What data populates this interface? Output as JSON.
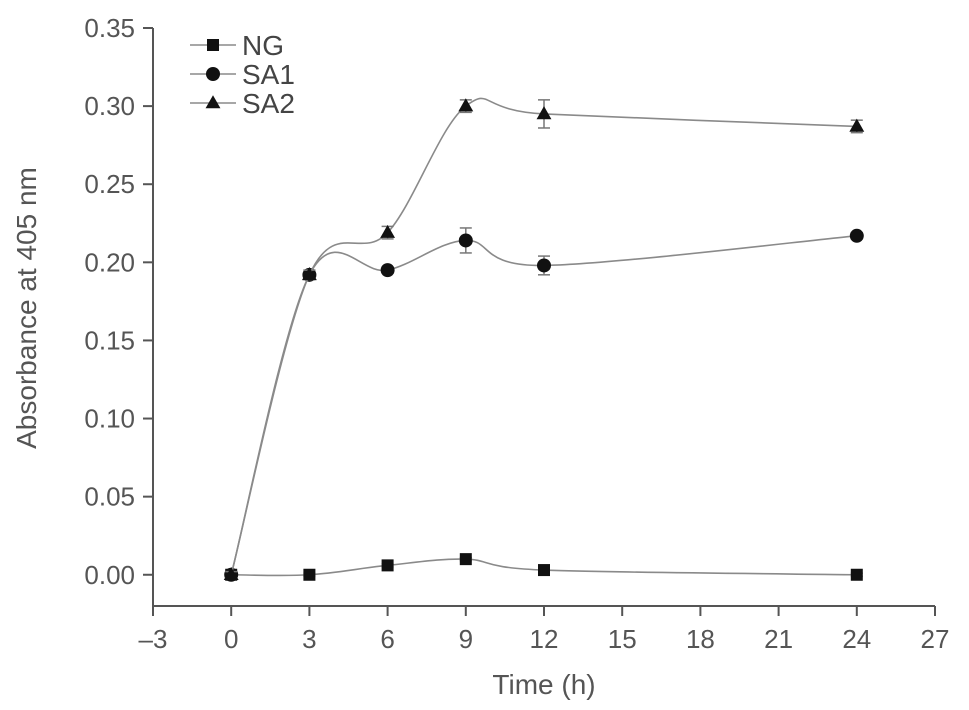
{
  "chart_data": {
    "type": "line",
    "xlabel": "Time (h)",
    "ylabel": "Absorbance at 405 nm",
    "xlim": [
      -3,
      27
    ],
    "ylim": [
      -0.02,
      0.35
    ],
    "xticks": [
      -3,
      0,
      3,
      6,
      9,
      12,
      15,
      18,
      21,
      24,
      27
    ],
    "xtick_labels": [
      "–3",
      "0",
      "3",
      "6",
      "9",
      "12",
      "15",
      "18",
      "21",
      "24",
      "27"
    ],
    "yticks": [
      0.0,
      0.05,
      0.1,
      0.15,
      0.2,
      0.25,
      0.3,
      0.35
    ],
    "ytick_labels": [
      "0.00",
      "0.05",
      "0.10",
      "0.15",
      "0.20",
      "0.25",
      "0.30",
      "0.35"
    ],
    "x": [
      0,
      3,
      6,
      9,
      12,
      24
    ],
    "legend_position": "top-left",
    "grid": false,
    "series": [
      {
        "name": "NG",
        "marker": "square",
        "values": [
          0.0,
          0.0,
          0.006,
          0.01,
          0.003,
          0.0
        ],
        "errors": [
          0.002,
          0.001,
          0.001,
          0.001,
          0.001,
          0.001
        ]
      },
      {
        "name": "SA1",
        "marker": "circle",
        "values": [
          0.0,
          0.192,
          0.195,
          0.214,
          0.198,
          0.217
        ],
        "errors": [
          0.002,
          0.003,
          0.002,
          0.008,
          0.006,
          0.002
        ]
      },
      {
        "name": "SA2",
        "marker": "triangle",
        "values": [
          0.0,
          0.192,
          0.219,
          0.3,
          0.295,
          0.287
        ],
        "errors": [
          0.002,
          0.003,
          0.004,
          0.004,
          0.009,
          0.004
        ]
      }
    ]
  }
}
